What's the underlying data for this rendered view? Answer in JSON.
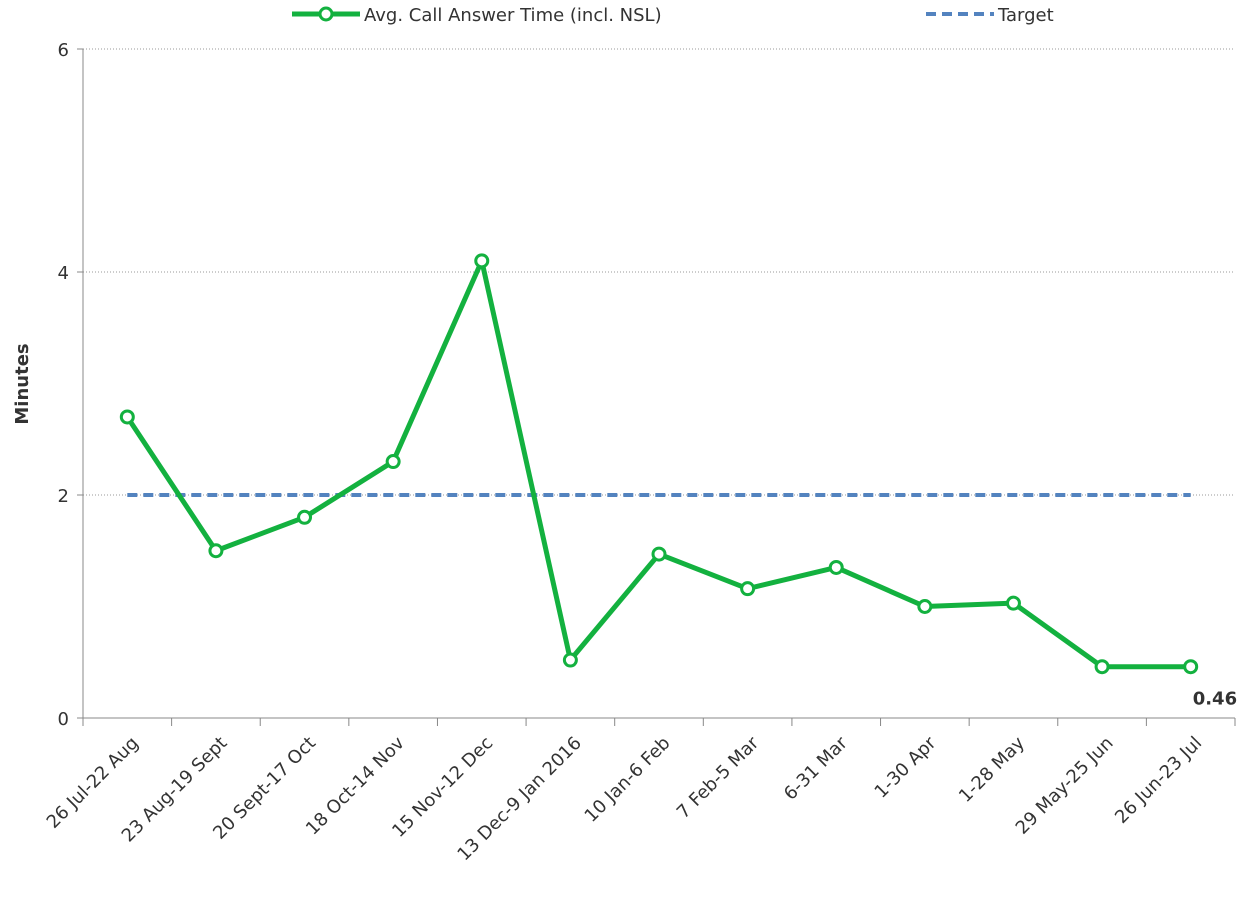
{
  "chart_data": {
    "type": "line",
    "y_label": "Minutes",
    "categories": [
      "26 Jul-22 Aug",
      "23 Aug-19 Sept",
      "20 Sept-17 Oct",
      "18 Oct-14 Nov",
      "15 Nov-12 Dec",
      "13 Dec-9 Jan 2016",
      "10 Jan-6 Feb",
      "7 Feb-5 Mar",
      "6-31 Mar",
      "1-30 Apr",
      "1-28 May",
      "29 May-25 Jun",
      "26 Jun-23 Jul"
    ],
    "series": [
      {
        "name": "Avg. Call Answer Time (incl. NSL)",
        "color": "#13b13f",
        "values": [
          2.7,
          1.5,
          1.8,
          2.3,
          4.1,
          0.52,
          1.47,
          1.16,
          1.35,
          1.0,
          1.03,
          0.46,
          0.46
        ]
      },
      {
        "name": "Target",
        "color": "#5383bf",
        "dashed": true,
        "values": [
          2,
          2,
          2,
          2,
          2,
          2,
          2,
          2,
          2,
          2,
          2,
          2,
          2
        ]
      }
    ],
    "ylim": [
      0,
      6
    ],
    "yticks": [
      0,
      2,
      4,
      6
    ],
    "grid": true,
    "legend": "top"
  }
}
